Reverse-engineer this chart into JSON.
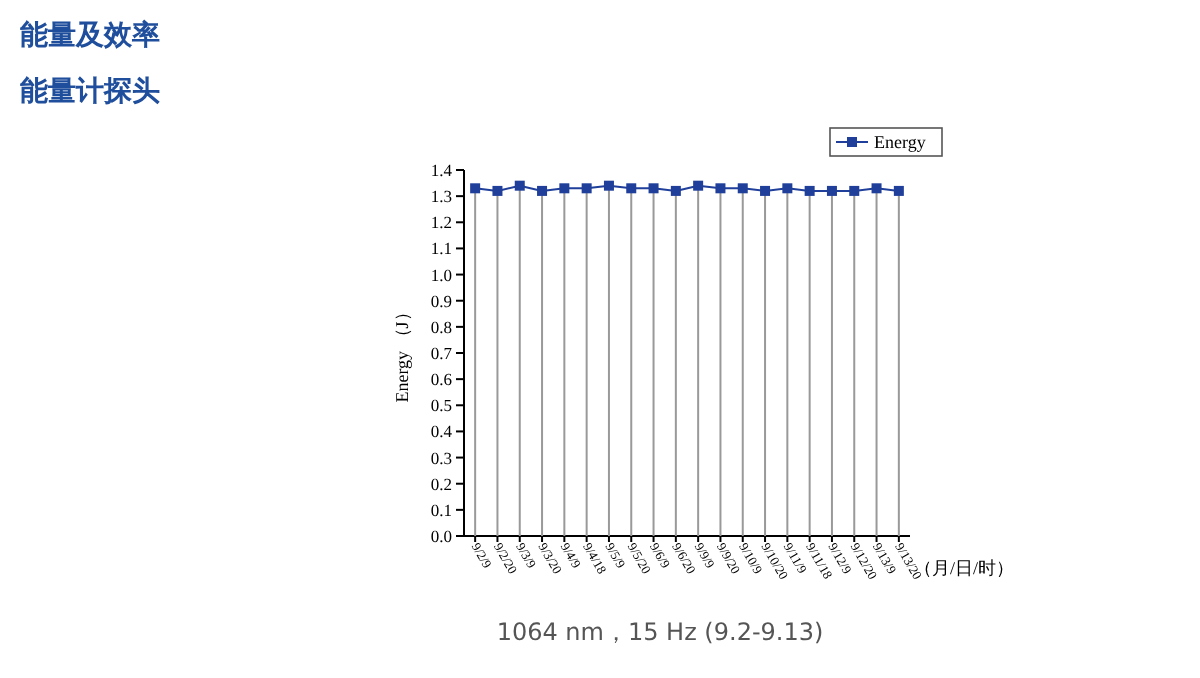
{
  "chart_data": {
    "type": "line",
    "title": "能量及效率",
    "subtitle": "能量计探头",
    "xlabel": "（月/日/时）",
    "ylabel": "Energy （J）",
    "categories": [
      "9/2/9",
      "9/2/20",
      "9/3/9",
      "9/3/20",
      "9/4/9",
      "9/4/18",
      "9/5/9",
      "9/5/20",
      "9/6/9",
      "9/6/20",
      "9/9/9",
      "9/9/20",
      "9/10/9",
      "9/10/20",
      "9/11/9",
      "9/11/18",
      "9/12/9",
      "9/12/20",
      "9/13/9",
      "9/13/20"
    ],
    "series": [
      {
        "name": "Energy",
        "color": "#1f3f9a",
        "values": [
          1.33,
          1.32,
          1.34,
          1.32,
          1.33,
          1.33,
          1.34,
          1.33,
          1.33,
          1.32,
          1.34,
          1.33,
          1.33,
          1.32,
          1.33,
          1.32,
          1.32,
          1.32,
          1.33,
          1.32
        ]
      }
    ],
    "grid": "x",
    "ylim": [
      0,
      1.4
    ],
    "yticks": [
      {
        "value": 0,
        "label": "0.0"
      },
      0.1,
      0.2,
      0.3,
      0.4,
      0.5,
      0.6,
      0.7,
      0.8,
      0.9,
      {
        "value": 1,
        "label": "1.0"
      },
      1.1,
      1.2,
      1.3,
      1.4
    ],
    "marker": "square",
    "line_style": "solid",
    "legend": "top right",
    "annotations": [
      "1064 nm，15 Hz (9.2-9.13)"
    ]
  }
}
